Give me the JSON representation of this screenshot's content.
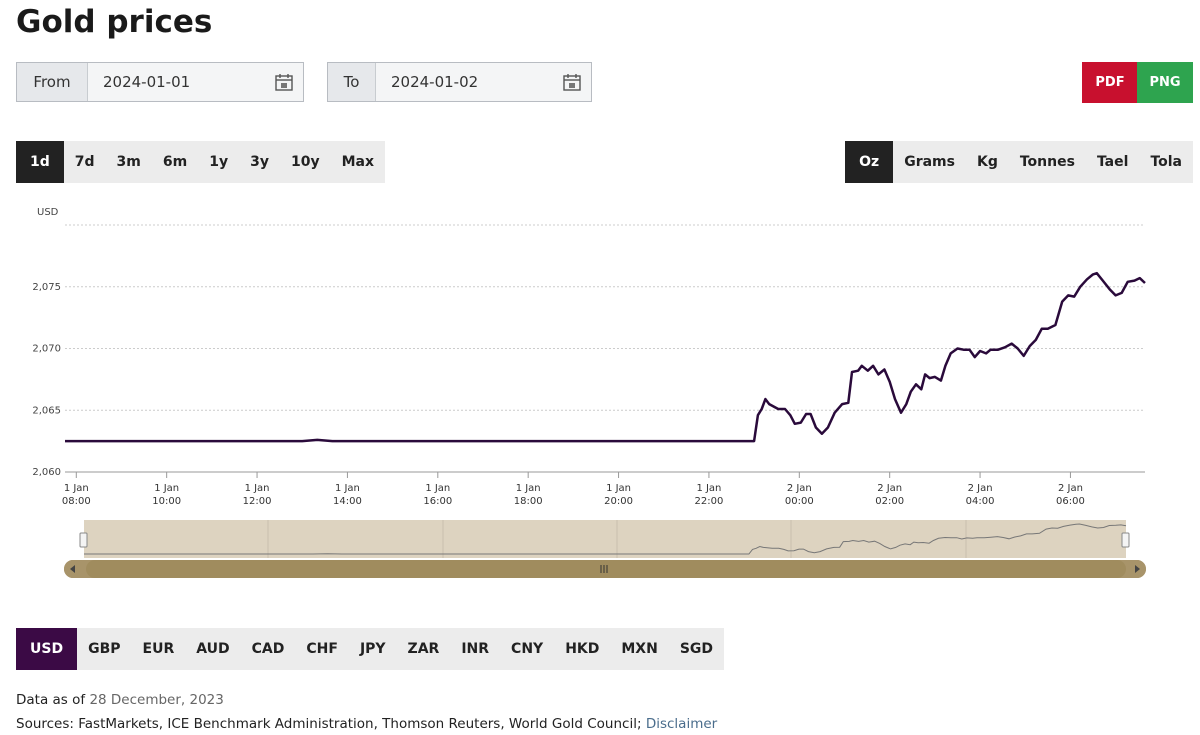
{
  "title": "Gold prices",
  "from": {
    "label": "From",
    "value": "2024-01-01"
  },
  "to": {
    "label": "To",
    "value": "2024-01-02"
  },
  "export": [
    "PDF",
    "PNG"
  ],
  "ranges": {
    "options": [
      "1d",
      "7d",
      "3m",
      "6m",
      "1y",
      "3y",
      "10y",
      "Max"
    ],
    "selected": 0
  },
  "units": {
    "options": [
      "Oz",
      "Grams",
      "Kg",
      "Tonnes",
      "Tael",
      "Tola"
    ],
    "selected": 0
  },
  "currencies": {
    "options": [
      "USD",
      "GBP",
      "EUR",
      "AUD",
      "CAD",
      "CHF",
      "JPY",
      "ZAR",
      "INR",
      "CNY",
      "HKD",
      "MXN",
      "SGD"
    ],
    "selected": 0
  },
  "footer": {
    "data_as_of_label": "Data as of",
    "data_as_of_date": "28 December, 2023",
    "sources": "Sources: FastMarkets, ICE Benchmark Administration, Thomson Reuters, World Gold Council;",
    "disclaimer": "Disclaimer"
  },
  "chart_data": {
    "type": "line",
    "y_label": "USD",
    "x": [
      "1 Jan 07:45",
      "1 Jan 10:00",
      "1 Jan 13:00",
      "1 Jan 13:20",
      "1 Jan 13:40",
      "1 Jan 18:00",
      "1 Jan 23:00",
      "1 Jan 23:05",
      "1 Jan 23:10",
      "1 Jan 23:15",
      "1 Jan 23:20",
      "1 Jan 23:32",
      "1 Jan 23:41",
      "1 Jan 23:48",
      "1 Jan 23:54",
      "2 Jan 00:02",
      "2 Jan 00:09",
      "2 Jan 00:15",
      "2 Jan 00:22",
      "2 Jan 00:30",
      "2 Jan 00:38",
      "2 Jan 00:47",
      "2 Jan 00:57",
      "2 Jan 01:05",
      "2 Jan 01:10",
      "2 Jan 01:18",
      "2 Jan 01:23",
      "2 Jan 01:31",
      "2 Jan 01:38",
      "2 Jan 01:45",
      "2 Jan 01:53",
      "2 Jan 02:00",
      "2 Jan 02:07",
      "2 Jan 02:15",
      "2 Jan 02:22",
      "2 Jan 02:28",
      "2 Jan 02:35",
      "2 Jan 02:42",
      "2 Jan 02:47",
      "2 Jan 02:53",
      "2 Jan 03:00",
      "2 Jan 03:08",
      "2 Jan 03:14",
      "2 Jan 03:21",
      "2 Jan 03:30",
      "2 Jan 03:38",
      "2 Jan 03:46",
      "2 Jan 03:53",
      "2 Jan 04:00",
      "2 Jan 04:08",
      "2 Jan 04:14",
      "2 Jan 04:24",
      "2 Jan 04:33",
      "2 Jan 04:42",
      "2 Jan 04:50",
      "2 Jan 04:58",
      "2 Jan 05:06",
      "2 Jan 05:14",
      "2 Jan 05:22",
      "2 Jan 05:30",
      "2 Jan 05:40",
      "2 Jan 05:49",
      "2 Jan 05:57",
      "2 Jan 06:05",
      "2 Jan 06:13",
      "2 Jan 06:22",
      "2 Jan 06:30",
      "2 Jan 06:35",
      "2 Jan 06:43",
      "2 Jan 06:52",
      "2 Jan 07:00",
      "2 Jan 07:08",
      "2 Jan 07:16",
      "2 Jan 07:25",
      "2 Jan 07:32",
      "2 Jan 07:39"
    ],
    "series": [
      {
        "name": "Gold price",
        "color": "#2a0a3b",
        "values": [
          2062.5,
          2062.5,
          2062.5,
          2062.6,
          2062.5,
          2062.5,
          2062.5,
          2064.6,
          2065.1,
          2065.9,
          2065.5,
          2065.1,
          2065.1,
          2064.6,
          2063.9,
          2064.0,
          2064.7,
          2064.7,
          2063.6,
          2063.1,
          2063.6,
          2064.8,
          2065.5,
          2065.6,
          2068.1,
          2068.2,
          2068.6,
          2068.2,
          2068.6,
          2067.9,
          2068.3,
          2067.3,
          2065.9,
          2064.8,
          2065.5,
          2066.5,
          2067.1,
          2066.7,
          2067.9,
          2067.6,
          2067.7,
          2067.4,
          2068.6,
          2069.6,
          2070.0,
          2069.9,
          2069.9,
          2069.3,
          2069.8,
          2069.6,
          2069.9,
          2069.9,
          2070.1,
          2070.4,
          2070.0,
          2069.4,
          2070.2,
          2070.7,
          2071.6,
          2071.6,
          2071.9,
          2073.8,
          2074.3,
          2074.2,
          2075.0,
          2075.6,
          2076.0,
          2076.1,
          2075.5,
          2074.8,
          2074.3,
          2074.5,
          2075.4,
          2075.5,
          2075.7,
          2075.3
        ]
      }
    ],
    "xlim": [
      "1 Jan 07:45",
      "2 Jan 07:39"
    ],
    "xticks": [
      "1 Jan 08:00",
      "1 Jan 10:00",
      "1 Jan 12:00",
      "1 Jan 14:00",
      "1 Jan 16:00",
      "1 Jan 18:00",
      "1 Jan 20:00",
      "1 Jan 22:00",
      "2 Jan 00:00",
      "2 Jan 02:00",
      "2 Jan 04:00",
      "2 Jan 06:00"
    ],
    "ylim": [
      2060,
      2080
    ],
    "yticks": [
      {
        "value": 2060,
        "label": "2,060"
      },
      {
        "value": 2065,
        "label": "2,065"
      },
      {
        "value": 2070,
        "label": "2,070"
      },
      {
        "value": 2075,
        "label": "2,075"
      }
    ],
    "grid": true
  }
}
